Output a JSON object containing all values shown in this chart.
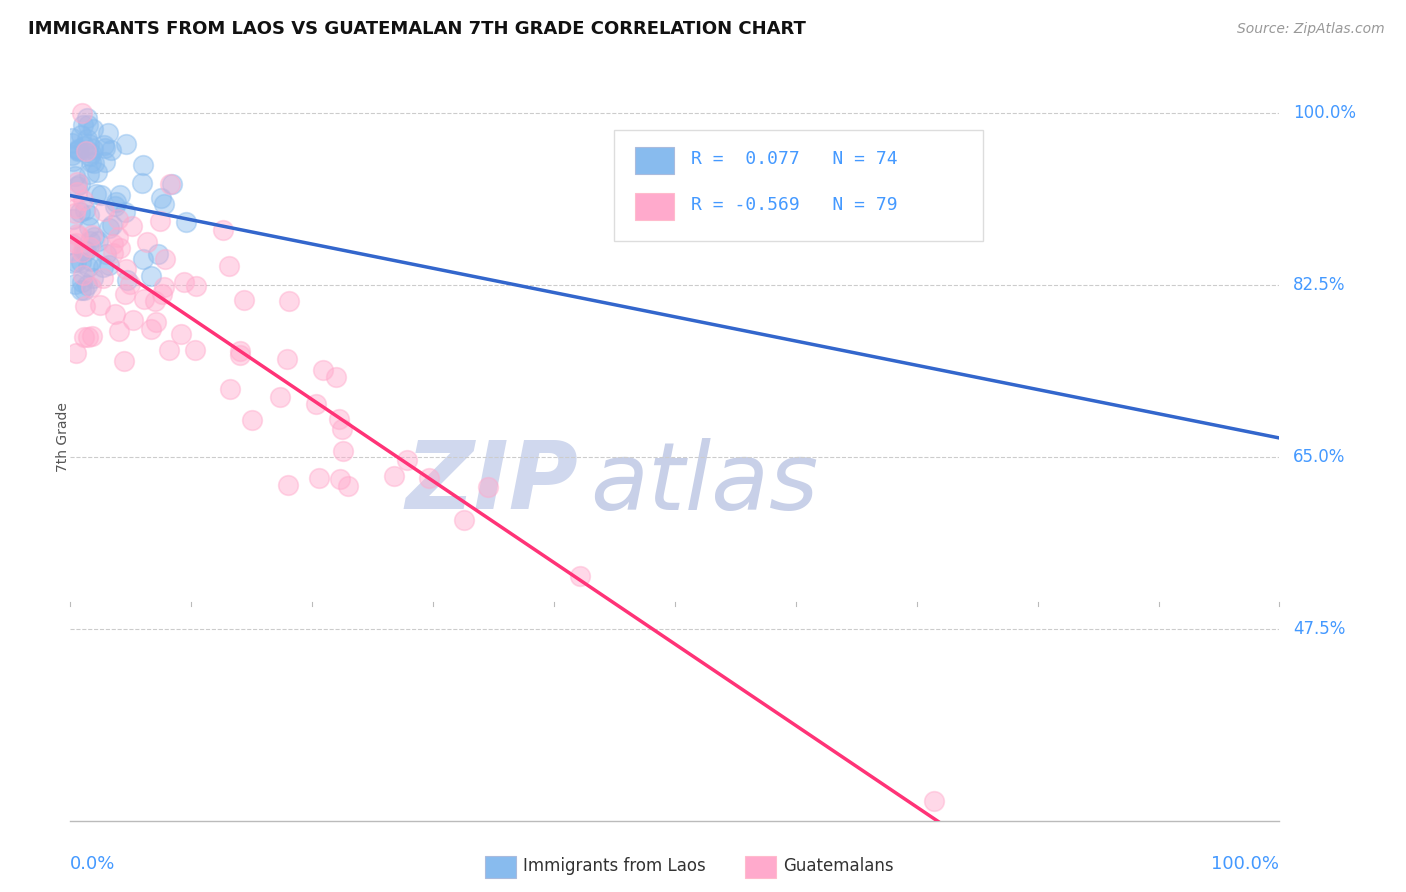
{
  "title": "IMMIGRANTS FROM LAOS VS GUATEMALAN 7TH GRADE CORRELATION CHART",
  "source_text": "Source: ZipAtlas.com",
  "ylabel": "7th Grade",
  "legend_blue_label": "Immigrants from Laos",
  "legend_pink_label": "Guatemalans",
  "blue_color": "#88BBEE",
  "pink_color": "#FFAACC",
  "blue_line_color": "#3366CC",
  "pink_line_color": "#FF3377",
  "dashed_line_color": "#99BBFF",
  "label_color": "#4499FF",
  "watermark_color_zip": "#D0D8EE",
  "watermark_color_atlas": "#C8D0E8",
  "ytick_vals": [
    1.0,
    0.825,
    0.65,
    0.475
  ],
  "ytick_labs": [
    "100.0%",
    "82.5%",
    "65.0%",
    "47.5%"
  ],
  "blue_r": 0.077,
  "blue_n": 74,
  "pink_r": -0.569,
  "pink_n": 79,
  "xmin": 0.0,
  "xmax": 1.0,
  "ymin": 0.28,
  "ymax": 1.06
}
